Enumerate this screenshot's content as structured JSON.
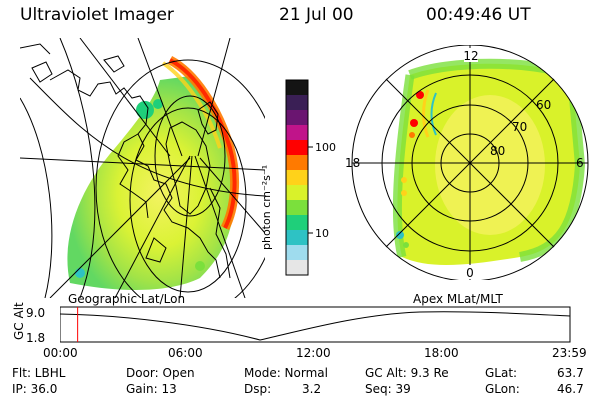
{
  "header": {
    "title": "Ultraviolet Imager",
    "date": "21 Jul 00",
    "time": "00:49:46 UT"
  },
  "colorbar": {
    "unit_label": "photon cm⁻²s⁻¹",
    "ticks": [
      "100",
      "10"
    ],
    "colors": [
      "#141414",
      "#3a1f55",
      "#6a1570",
      "#c0148a",
      "#ff0000",
      "#ff7a00",
      "#ffd21a",
      "#d9f22a",
      "#7be03c",
      "#1fcf7a",
      "#2ec2c4",
      "#9fdcee",
      "#e6e6e6"
    ]
  },
  "left_panel": {
    "caption": "Geographic Lat/Lon"
  },
  "right_panel": {
    "caption": "Apex MLat/MLT",
    "mlt_labels": [
      "12",
      "18",
      "6",
      "0"
    ],
    "lat_labels": [
      "60",
      "70",
      "80"
    ]
  },
  "altitude_plot": {
    "ylabel": "GC Alt",
    "yticks": [
      "9.0",
      "1.8"
    ],
    "xticks": [
      "00:00",
      "06:00",
      "12:00",
      "18:00",
      "23:59"
    ],
    "cursor_hours": 0.83,
    "cursor_color": "#ff0000"
  },
  "status": {
    "row1": {
      "flt": "Flt: LBHL",
      "door": "Door: Open",
      "mode": "Mode: Normal",
      "gcalt": "GC Alt: 9.3 Re",
      "glat_label": "GLat:",
      "glat_value": "63.7"
    },
    "row2": {
      "ip": "IP: 36.0",
      "gain": "Gain: 13",
      "dsp_label": "Dsp:",
      "dsp_value": "3.2",
      "seq": "Seq: 39",
      "glon_label": "GLon:",
      "glon_value": "46.7"
    }
  }
}
